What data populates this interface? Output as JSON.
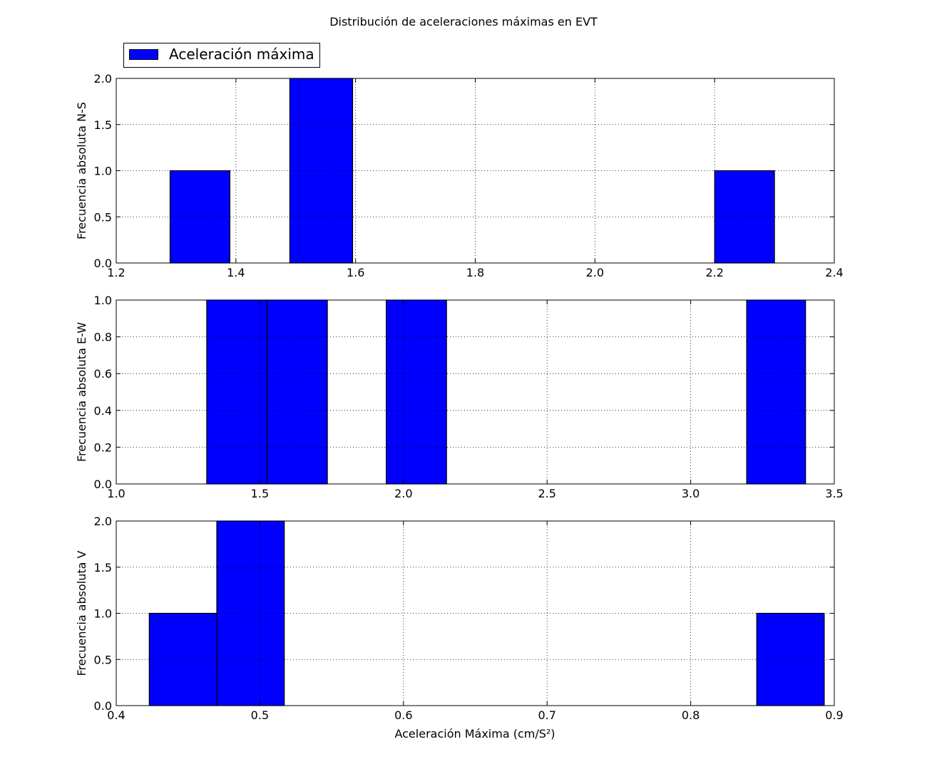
{
  "chart_data": {
    "title": "Distribución de aceleraciones máximas en EVT",
    "legend": {
      "label": "Aceleración máxima",
      "placement": "top-left",
      "color": "#0000ff"
    },
    "xlabel": "Aceleración Máxima (cm/S²)",
    "bar_color": "#0000ff",
    "grid": true,
    "subplots": [
      {
        "type": "bar",
        "ylabel": "Frecuencia absoluta N-S",
        "xlim": [
          1.2,
          2.4
        ],
        "ylim": [
          0.0,
          2.0
        ],
        "xticks": [
          "1.2",
          "1.4",
          "1.6",
          "1.8",
          "2.0",
          "2.2",
          "2.4"
        ],
        "yticks": [
          "0.0",
          "0.5",
          "1.0",
          "1.5",
          "2.0"
        ],
        "bars": [
          {
            "x0": 1.29,
            "x1": 1.39,
            "value": 1
          },
          {
            "x0": 1.49,
            "x1": 1.595,
            "value": 2
          },
          {
            "x0": 2.2,
            "x1": 2.3,
            "value": 1
          }
        ]
      },
      {
        "type": "bar",
        "ylabel": "Frecuencia absoluta E-W",
        "xlim": [
          1.0,
          3.5
        ],
        "ylim": [
          0.0,
          1.0
        ],
        "xticks": [
          "1.0",
          "1.5",
          "2.0",
          "2.5",
          "3.0",
          "3.5"
        ],
        "yticks": [
          "0.0",
          "0.2",
          "0.4",
          "0.6",
          "0.8",
          "1.0"
        ],
        "bars": [
          {
            "x0": 1.315,
            "x1": 1.525,
            "value": 1
          },
          {
            "x0": 1.525,
            "x1": 1.735,
            "value": 1
          },
          {
            "x0": 1.94,
            "x1": 2.15,
            "value": 1
          },
          {
            "x0": 3.195,
            "x1": 3.4,
            "value": 1
          }
        ]
      },
      {
        "type": "bar",
        "ylabel": "Frecuencia absoluta V",
        "xlim": [
          0.4,
          0.9
        ],
        "ylim": [
          0.0,
          2.0
        ],
        "xticks": [
          "0.4",
          "0.5",
          "0.6",
          "0.7",
          "0.8",
          "0.9"
        ],
        "yticks": [
          "0.0",
          "0.5",
          "1.0",
          "1.5",
          "2.0"
        ],
        "bars": [
          {
            "x0": 0.423,
            "x1": 0.47,
            "value": 1
          },
          {
            "x0": 0.47,
            "x1": 0.517,
            "value": 2
          },
          {
            "x0": 0.846,
            "x1": 0.893,
            "value": 1
          }
        ]
      }
    ]
  }
}
